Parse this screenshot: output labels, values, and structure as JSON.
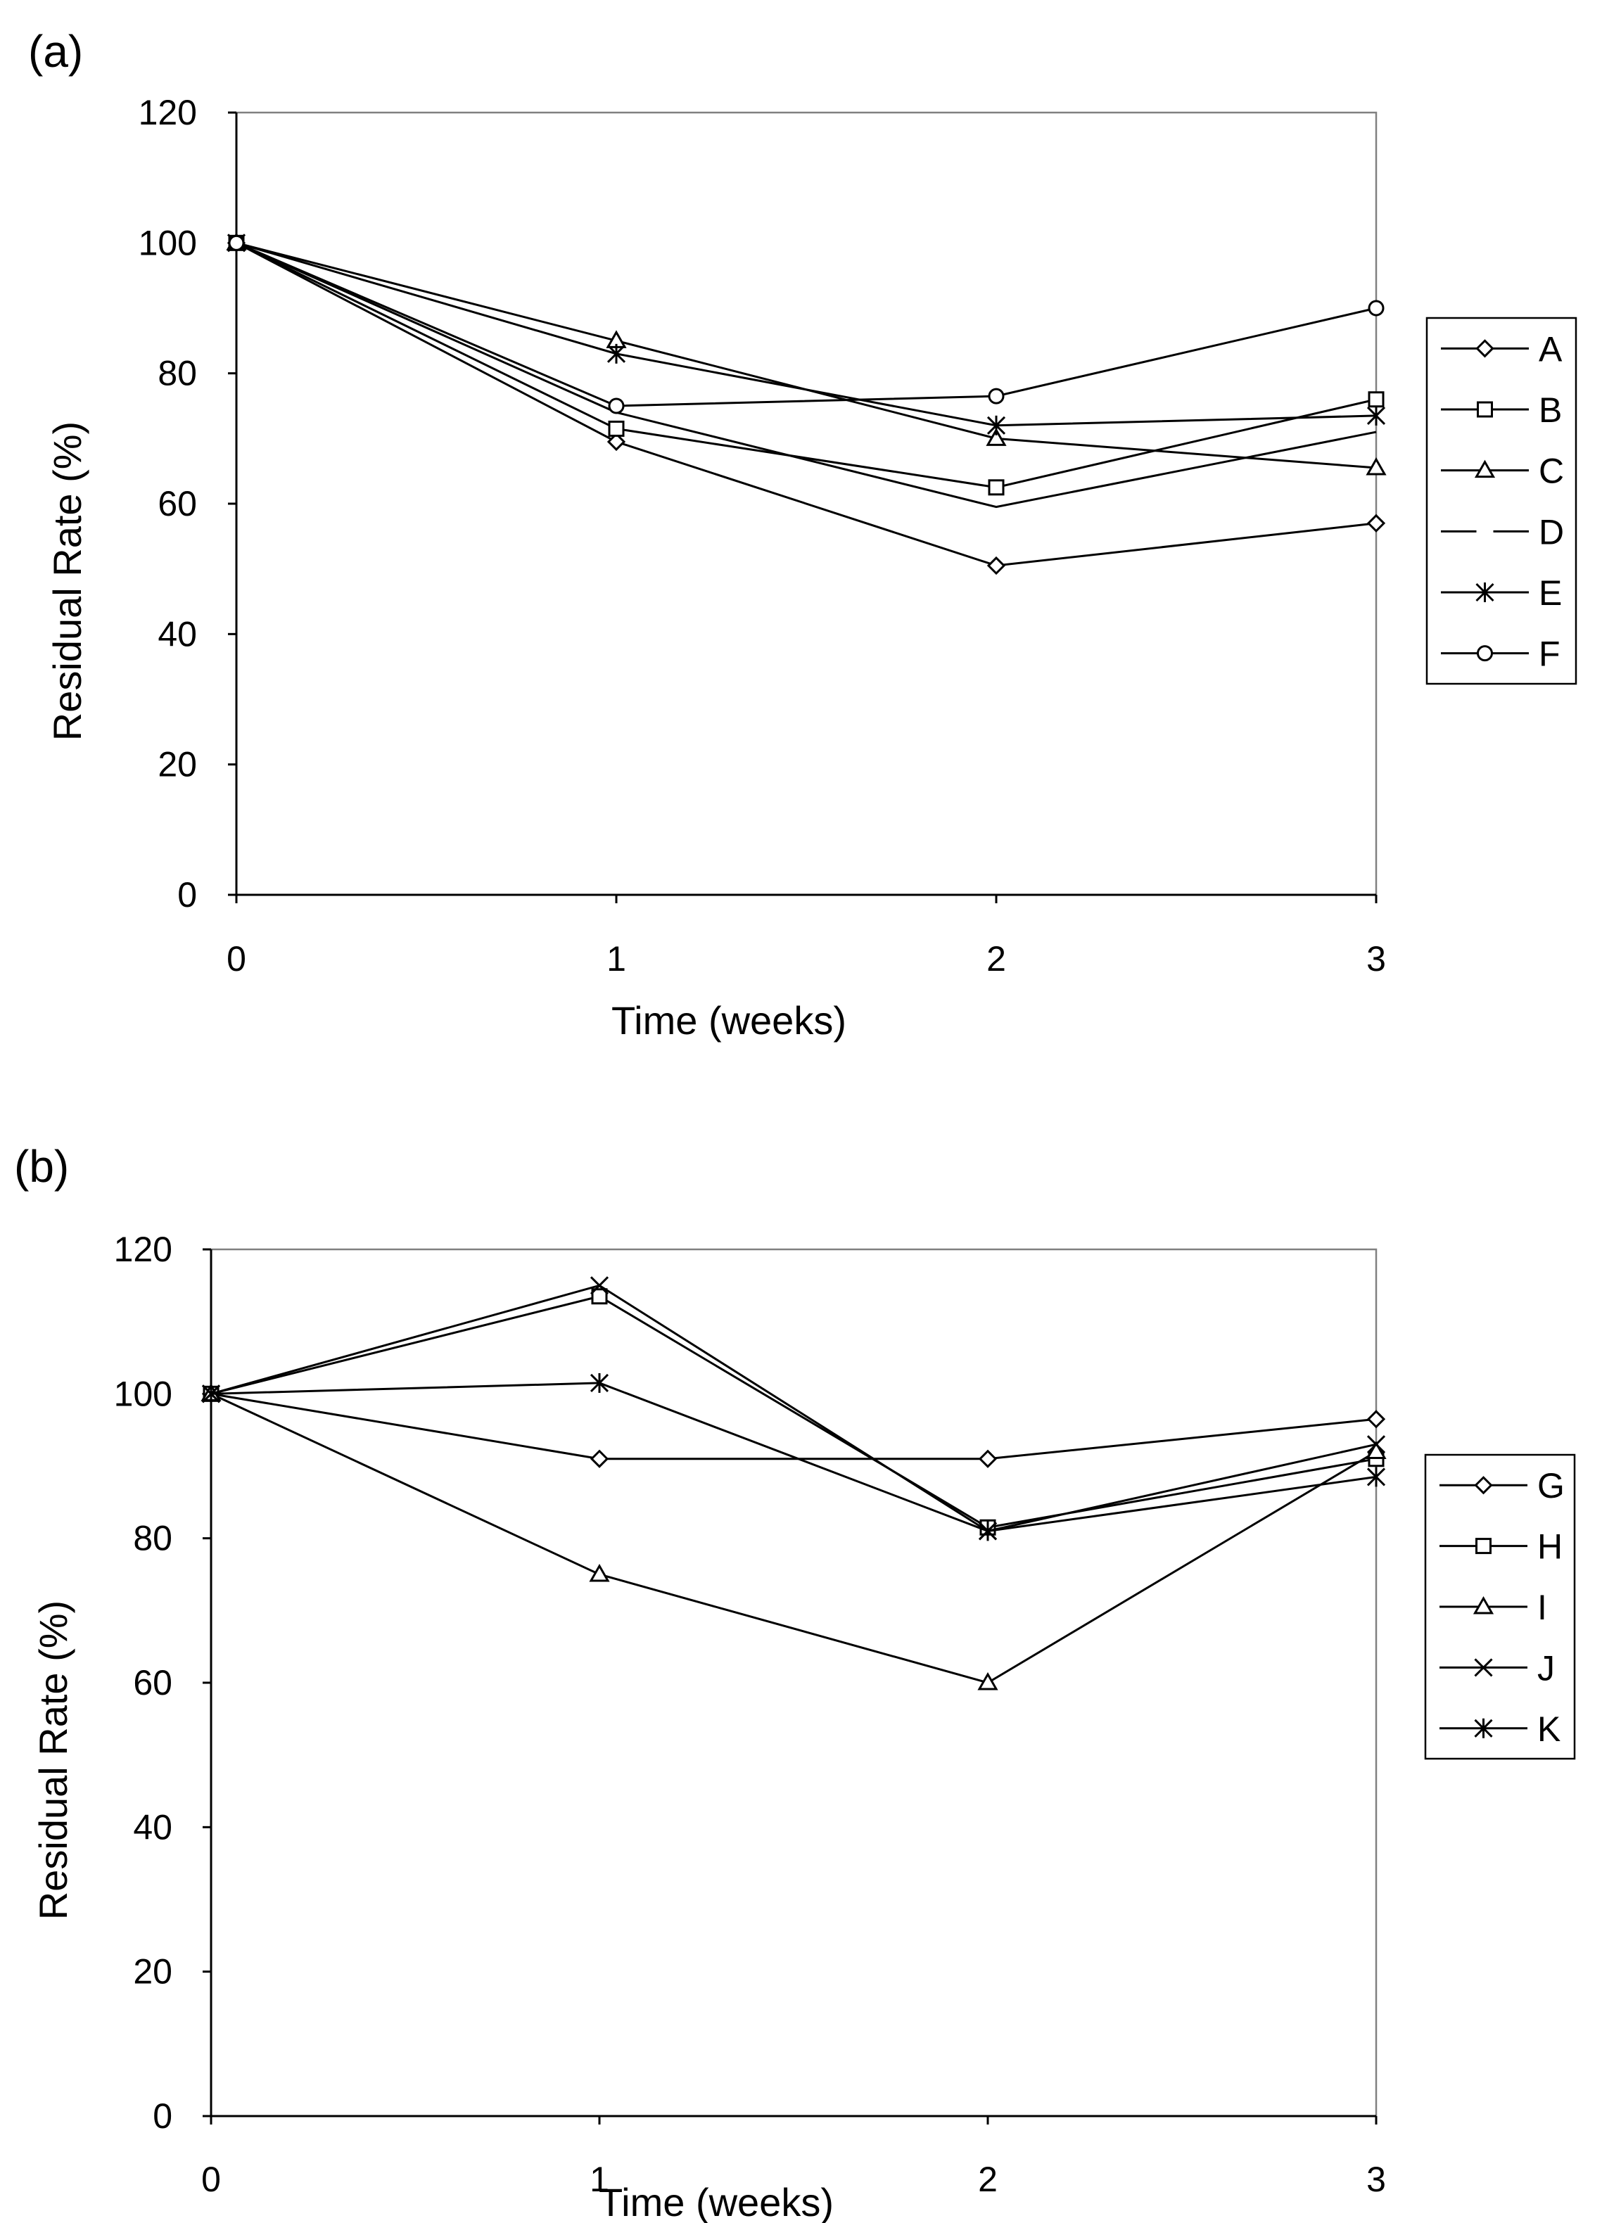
{
  "chart_data": [
    {
      "panel_label": "(a)",
      "type": "line",
      "x": [
        0,
        1,
        2,
        3
      ],
      "xlabel": "Time (weeks)",
      "ylabel": "Residual Rate (%)",
      "xlim": [
        0,
        3
      ],
      "ylim": [
        0,
        120
      ],
      "xticks": [
        "0",
        "1",
        "2",
        "3"
      ],
      "yticks": [
        "0",
        "20",
        "40",
        "60",
        "80",
        "100",
        "120"
      ],
      "grid": false,
      "legend_position": "right",
      "series": [
        {
          "name": "A",
          "marker": "diamond",
          "values": [
            100,
            69.5,
            50.5,
            57
          ]
        },
        {
          "name": "B",
          "marker": "square",
          "values": [
            100,
            71.5,
            62.5,
            76
          ]
        },
        {
          "name": "C",
          "marker": "triangle",
          "values": [
            100,
            85,
            70,
            65.5
          ]
        },
        {
          "name": "D",
          "marker": "dash",
          "values": [
            100,
            74,
            59.5,
            71
          ]
        },
        {
          "name": "E",
          "marker": "asterisk",
          "values": [
            100,
            83,
            72,
            73.5
          ]
        },
        {
          "name": "F",
          "marker": "circle",
          "values": [
            100,
            75,
            76.5,
            90
          ]
        }
      ]
    },
    {
      "panel_label": "(b)",
      "type": "line",
      "x": [
        0,
        1,
        2,
        3
      ],
      "xlabel": "Time (weeks)",
      "ylabel": "Residual Rate (%)",
      "xlim": [
        0,
        3
      ],
      "ylim": [
        0,
        120
      ],
      "xticks": [
        "0",
        "1",
        "2",
        "3"
      ],
      "yticks": [
        "0",
        "20",
        "40",
        "60",
        "80",
        "100",
        "120"
      ],
      "grid": false,
      "legend_position": "right",
      "series": [
        {
          "name": "G",
          "marker": "diamond",
          "values": [
            100,
            91,
            91,
            96.5
          ]
        },
        {
          "name": "H",
          "marker": "square",
          "values": [
            100,
            113.5,
            81.5,
            91
          ]
        },
        {
          "name": "I",
          "marker": "triangle",
          "values": [
            100,
            75,
            60,
            92
          ]
        },
        {
          "name": "J",
          "marker": "x",
          "values": [
            100,
            115,
            81,
            93
          ]
        },
        {
          "name": "K",
          "marker": "asterisk",
          "values": [
            100,
            101.5,
            81,
            88.5
          ]
        }
      ]
    }
  ]
}
